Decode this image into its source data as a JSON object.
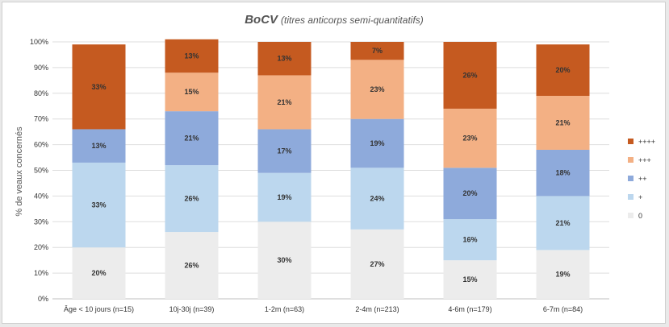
{
  "chart_data": {
    "type": "bar",
    "stacked": true,
    "title": "BoCV",
    "subtitle": "(titres anticorps semi-quantitatifs)",
    "ylabel": "% de veaux concernés",
    "xlabel": "",
    "ylim": [
      0,
      100
    ],
    "yticks": [
      "0%",
      "10%",
      "20%",
      "30%",
      "40%",
      "50%",
      "60%",
      "70%",
      "80%",
      "90%",
      "100%"
    ],
    "grid": true,
    "legend_position": "right",
    "categories": [
      "Âge < 10 jours (n=15)",
      "10j-30j (n=39)",
      "1-2m (n=63)",
      "2-4m (n=213)",
      "4-6m (n=179)",
      "6-7m (n=84)"
    ],
    "series": [
      {
        "name": "0",
        "color": "#ececec",
        "values": [
          20,
          26,
          30,
          27,
          15,
          19
        ],
        "labels": [
          "20%",
          "26%",
          "30%",
          "27%",
          "15%",
          "19%"
        ]
      },
      {
        "name": "+",
        "color": "#bcd7ee",
        "values": [
          33,
          26,
          19,
          24,
          16,
          21
        ],
        "labels": [
          "33%",
          "26%",
          "19%",
          "24%",
          "16%",
          "21%"
        ]
      },
      {
        "name": "++",
        "color": "#8eaadb",
        "values": [
          13,
          21,
          17,
          19,
          20,
          18
        ],
        "labels": [
          "13%",
          "21%",
          "17%",
          "19%",
          "20%",
          "18%"
        ]
      },
      {
        "name": "+++",
        "color": "#f3b084",
        "values": [
          0,
          15,
          21,
          23,
          23,
          21
        ],
        "labels": [
          "",
          "15%",
          "21%",
          "23%",
          "23%",
          "21%"
        ]
      },
      {
        "name": "++++",
        "color": "#c55a20",
        "values": [
          33,
          13,
          13,
          7,
          26,
          20
        ],
        "labels": [
          "33%",
          "13%",
          "13%",
          "7%",
          "26%",
          "20%"
        ]
      }
    ]
  }
}
